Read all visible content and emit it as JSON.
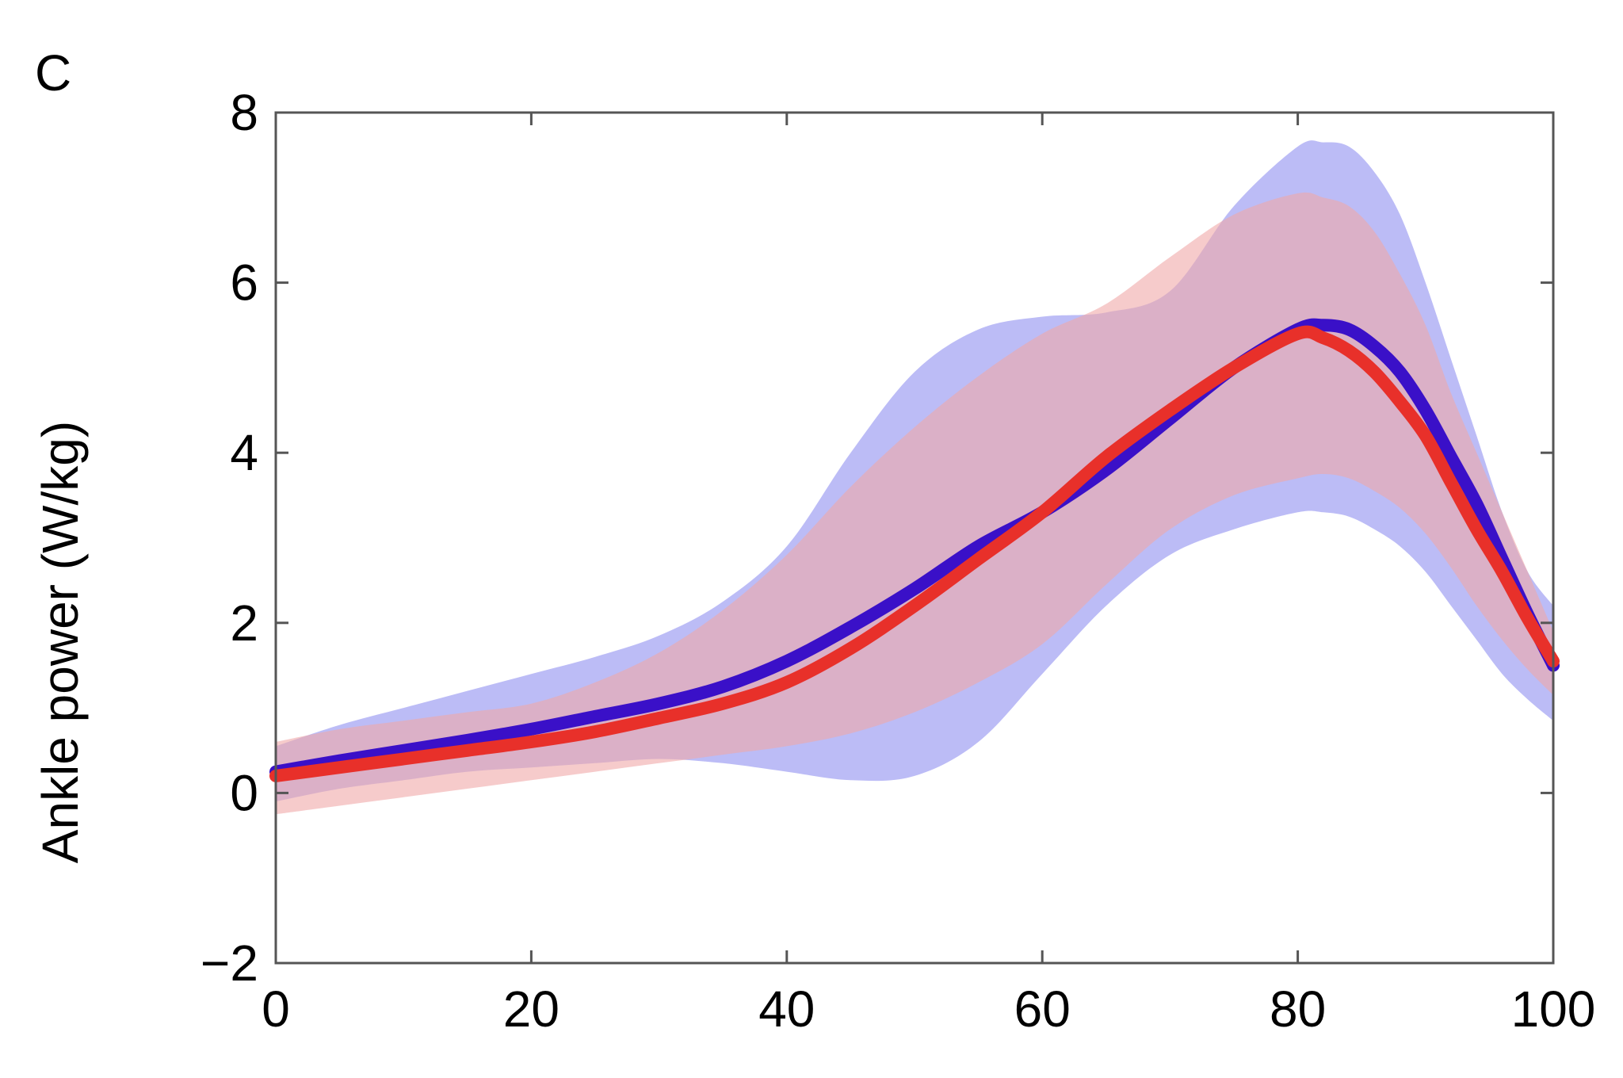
{
  "chart_data": {
    "type": "line",
    "panel_label": "C",
    "xlabel": "",
    "ylabel": "Ankle power (W/kg)",
    "xlim": [
      0,
      100
    ],
    "ylim": [
      -2,
      8
    ],
    "x_ticks": [
      0,
      20,
      40,
      60,
      80,
      100
    ],
    "y_ticks": [
      -2,
      0,
      2,
      4,
      6,
      8
    ],
    "y_tick_labels": [
      "−2",
      "0",
      "2",
      "4",
      "6",
      "8"
    ],
    "grid": false,
    "legend": "none",
    "series": [
      {
        "color": "#3a10c8",
        "band_color": "#8c8cf0",
        "x": [
          0,
          5,
          10,
          15,
          20,
          25,
          30,
          35,
          40,
          45,
          50,
          55,
          60,
          65,
          70,
          75,
          80,
          82,
          84,
          86,
          88,
          90,
          92,
          94,
          96,
          98,
          100
        ],
        "mean": [
          0.25,
          0.38,
          0.5,
          0.62,
          0.75,
          0.9,
          1.05,
          1.25,
          1.55,
          1.95,
          2.4,
          2.9,
          3.3,
          3.8,
          4.4,
          5.0,
          5.45,
          5.5,
          5.45,
          5.25,
          4.95,
          4.5,
          3.95,
          3.4,
          2.75,
          2.1,
          1.5
        ],
        "upper": [
          0.55,
          0.8,
          1.0,
          1.2,
          1.4,
          1.6,
          1.85,
          2.25,
          2.9,
          4.0,
          4.95,
          5.45,
          5.6,
          5.65,
          5.9,
          6.9,
          7.6,
          7.65,
          7.6,
          7.3,
          6.8,
          6.0,
          5.1,
          4.2,
          3.3,
          2.6,
          2.2
        ],
        "lower": [
          -0.1,
          0.05,
          0.15,
          0.25,
          0.3,
          0.35,
          0.4,
          0.35,
          0.25,
          0.15,
          0.2,
          0.6,
          1.4,
          2.2,
          2.8,
          3.1,
          3.3,
          3.3,
          3.25,
          3.1,
          2.9,
          2.6,
          2.2,
          1.8,
          1.4,
          1.1,
          0.85
        ]
      },
      {
        "color": "#e8302a",
        "band_color": "#f0a8a8",
        "x": [
          0,
          5,
          10,
          15,
          20,
          25,
          30,
          35,
          40,
          45,
          50,
          55,
          60,
          65,
          70,
          75,
          80,
          82,
          84,
          86,
          88,
          90,
          92,
          94,
          96,
          98,
          100
        ],
        "mean": [
          0.2,
          0.3,
          0.4,
          0.5,
          0.6,
          0.72,
          0.88,
          1.05,
          1.3,
          1.7,
          2.2,
          2.75,
          3.3,
          3.95,
          4.5,
          5.0,
          5.4,
          5.35,
          5.2,
          4.95,
          4.6,
          4.2,
          3.65,
          3.1,
          2.6,
          2.05,
          1.55
        ],
        "upper": [
          0.6,
          0.75,
          0.85,
          0.95,
          1.05,
          1.3,
          1.65,
          2.15,
          2.8,
          3.6,
          4.3,
          4.9,
          5.4,
          5.75,
          6.3,
          6.8,
          7.05,
          7.0,
          6.9,
          6.6,
          6.1,
          5.5,
          4.7,
          4.0,
          3.3,
          2.6,
          1.9
        ],
        "lower": [
          -0.25,
          -0.15,
          -0.05,
          0.05,
          0.15,
          0.25,
          0.35,
          0.45,
          0.55,
          0.7,
          0.95,
          1.3,
          1.75,
          2.45,
          3.1,
          3.5,
          3.7,
          3.75,
          3.7,
          3.55,
          3.35,
          3.05,
          2.65,
          2.2,
          1.8,
          1.45,
          1.15
        ]
      }
    ]
  }
}
